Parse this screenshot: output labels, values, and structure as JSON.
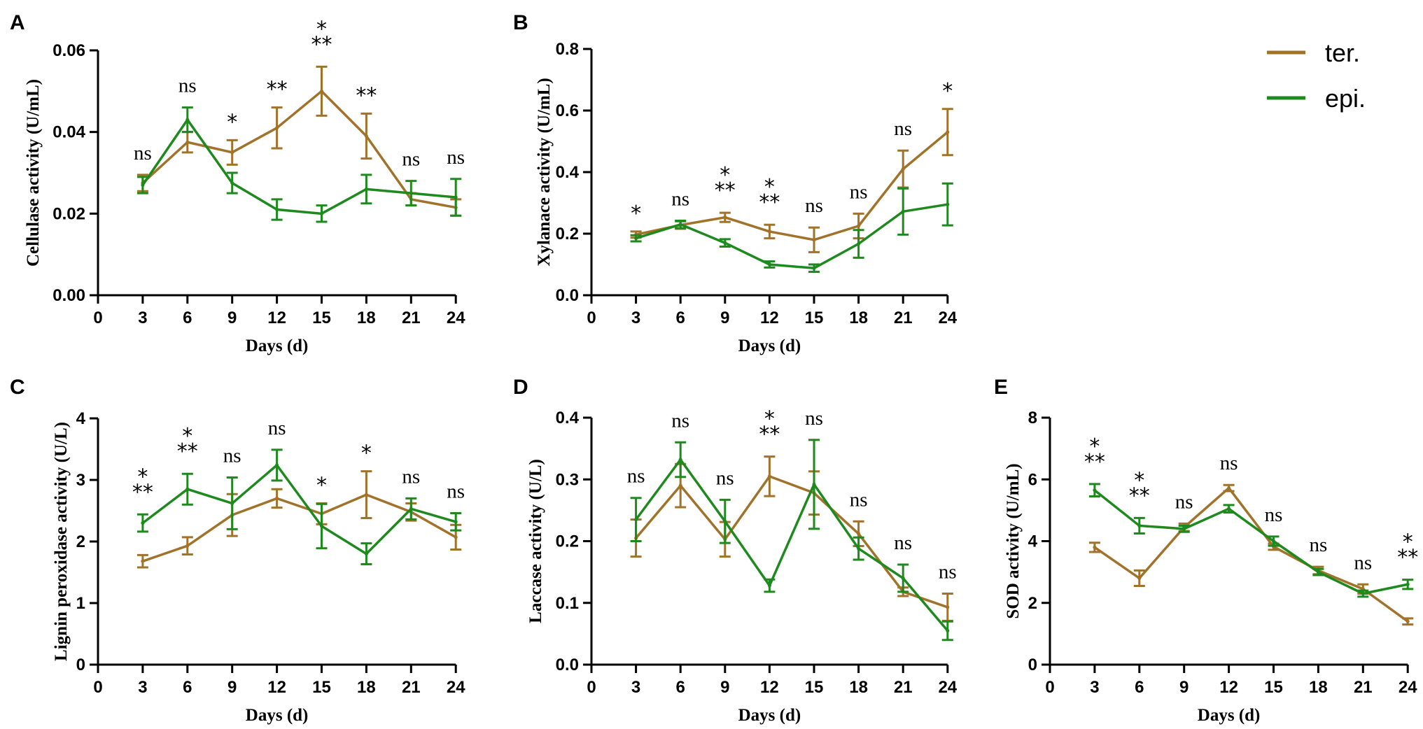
{
  "legend": [
    {
      "name": "ter.",
      "color": "#A0722A"
    },
    {
      "name": "epi.",
      "color": "#1E8A1E"
    }
  ],
  "chart_data": [
    {
      "type": "line",
      "panel": "A",
      "title": "",
      "xlabel": "Days (d)",
      "ylabel": "Cellulase activity (U/mL)",
      "xlim": [
        0,
        24
      ],
      "ylim": [
        0,
        0.06
      ],
      "xticks": [
        0,
        3,
        6,
        9,
        12,
        15,
        18,
        21,
        24
      ],
      "yticks": [
        0,
        0.02,
        0.04,
        0.06
      ],
      "ytick_labels": [
        "0.00",
        "0.02",
        "0.04",
        "0.06"
      ],
      "x": [
        3,
        6,
        9,
        12,
        15,
        18,
        21,
        24
      ],
      "series": [
        {
          "name": "ter.",
          "values": [
            0.0275,
            0.0375,
            0.035,
            0.041,
            0.05,
            0.039,
            0.0235,
            0.0215
          ],
          "errors": [
            0.002,
            0.0025,
            0.003,
            0.005,
            0.006,
            0.0055,
            0.0015,
            0.002
          ]
        },
        {
          "name": "epi.",
          "values": [
            0.027,
            0.043,
            0.0275,
            0.021,
            0.02,
            0.026,
            0.025,
            0.024
          ],
          "errors": [
            0.002,
            0.003,
            0.0025,
            0.0025,
            0.002,
            0.0035,
            0.003,
            0.0045
          ]
        }
      ],
      "annotations": [
        "ns",
        "ns",
        "*",
        "**",
        "***",
        "**",
        "ns",
        "ns"
      ]
    },
    {
      "type": "line",
      "panel": "B",
      "title": "",
      "xlabel": "Days (d)",
      "ylabel": "Xylanace activity (U/mL)",
      "xlim": [
        0,
        24
      ],
      "ylim": [
        0,
        0.8
      ],
      "xticks": [
        0,
        3,
        6,
        9,
        12,
        15,
        18,
        21,
        24
      ],
      "yticks": [
        0,
        0.2,
        0.4,
        0.6,
        0.8
      ],
      "ytick_labels": [
        "0.0",
        "0.2",
        "0.4",
        "0.6",
        "0.8"
      ],
      "x": [
        3,
        6,
        9,
        12,
        15,
        18,
        21,
        24
      ],
      "series": [
        {
          "name": "ter.",
          "values": [
            0.197,
            0.228,
            0.253,
            0.207,
            0.18,
            0.225,
            0.41,
            0.53
          ],
          "errors": [
            0.01,
            0.012,
            0.015,
            0.022,
            0.04,
            0.04,
            0.06,
            0.075
          ]
        },
        {
          "name": "epi.",
          "values": [
            0.185,
            0.23,
            0.17,
            0.1,
            0.088,
            0.167,
            0.272,
            0.295
          ],
          "errors": [
            0.01,
            0.012,
            0.012,
            0.01,
            0.012,
            0.045,
            0.075,
            0.068
          ]
        }
      ],
      "annotations": [
        "*",
        "ns",
        "***",
        "***",
        "ns",
        "ns",
        "ns",
        "*"
      ]
    },
    {
      "type": "line",
      "panel": "C",
      "title": "",
      "xlabel": "Days (d)",
      "ylabel": "Lignin peroxidase activity (U/L)",
      "xlim": [
        0,
        24
      ],
      "ylim": [
        0,
        4
      ],
      "xticks": [
        0,
        3,
        6,
        9,
        12,
        15,
        18,
        21,
        24
      ],
      "yticks": [
        0,
        1,
        2,
        3,
        4
      ],
      "ytick_labels": [
        "0",
        "1",
        "2",
        "3",
        "4"
      ],
      "x": [
        3,
        6,
        9,
        12,
        15,
        18,
        21,
        24
      ],
      "series": [
        {
          "name": "ter.",
          "values": [
            1.68,
            1.93,
            2.43,
            2.7,
            2.45,
            2.76,
            2.48,
            2.07
          ],
          "errors": [
            0.1,
            0.14,
            0.34,
            0.15,
            0.17,
            0.38,
            0.14,
            0.2
          ]
        },
        {
          "name": "epi.",
          "values": [
            2.3,
            2.85,
            2.62,
            3.24,
            2.25,
            1.8,
            2.53,
            2.32
          ],
          "errors": [
            0.14,
            0.25,
            0.42,
            0.25,
            0.36,
            0.17,
            0.17,
            0.14
          ]
        }
      ],
      "annotations": [
        "***",
        "***",
        "ns",
        "ns",
        "*",
        "*",
        "ns",
        "ns"
      ]
    },
    {
      "type": "line",
      "panel": "D",
      "title": "",
      "xlabel": "Days (d)",
      "ylabel": "Laccase activity (U/L)",
      "xlim": [
        0,
        24
      ],
      "ylim": [
        0,
        0.4
      ],
      "xticks": [
        0,
        3,
        6,
        9,
        12,
        15,
        18,
        21,
        24
      ],
      "yticks": [
        0,
        0.1,
        0.2,
        0.3,
        0.4
      ],
      "ytick_labels": [
        "0.0",
        "0.1",
        "0.2",
        "0.3",
        "0.4"
      ],
      "x": [
        3,
        6,
        9,
        12,
        15,
        18,
        21,
        24
      ],
      "series": [
        {
          "name": "ter.",
          "values": [
            0.205,
            0.29,
            0.203,
            0.305,
            0.278,
            0.212,
            0.118,
            0.093
          ],
          "errors": [
            0.03,
            0.035,
            0.028,
            0.032,
            0.035,
            0.02,
            0.007,
            0.022
          ]
        },
        {
          "name": "epi.",
          "values": [
            0.235,
            0.332,
            0.232,
            0.128,
            0.292,
            0.188,
            0.14,
            0.055
          ],
          "errors": [
            0.035,
            0.028,
            0.035,
            0.01,
            0.072,
            0.018,
            0.022,
            0.015
          ]
        }
      ],
      "annotations": [
        "ns",
        "ns",
        "ns",
        "***",
        "ns",
        "ns",
        "ns",
        "ns"
      ]
    },
    {
      "type": "line",
      "panel": "E",
      "title": "",
      "xlabel": "Days (d)",
      "ylabel": "SOD activity (U/mL)",
      "xlim": [
        0,
        24
      ],
      "ylim": [
        0,
        8
      ],
      "xticks": [
        0,
        3,
        6,
        9,
        12,
        15,
        18,
        21,
        24
      ],
      "yticks": [
        0,
        2,
        4,
        6,
        8
      ],
      "ytick_labels": [
        "0",
        "2",
        "4",
        "6",
        "8"
      ],
      "x": [
        3,
        6,
        9,
        12,
        15,
        18,
        21,
        24
      ],
      "series": [
        {
          "name": "ter.",
          "values": [
            3.8,
            2.8,
            4.45,
            5.72,
            3.82,
            3.05,
            2.45,
            1.4
          ],
          "errors": [
            0.15,
            0.25,
            0.12,
            0.1,
            0.1,
            0.12,
            0.15,
            0.1
          ]
        },
        {
          "name": "epi.",
          "values": [
            5.65,
            4.5,
            4.4,
            5.05,
            4.0,
            3.0,
            2.3,
            2.6
          ],
          "errors": [
            0.2,
            0.25,
            0.1,
            0.12,
            0.15,
            0.1,
            0.1,
            0.15
          ]
        }
      ],
      "annotations": [
        "***",
        "***",
        "ns",
        "ns",
        "ns",
        "ns",
        "ns",
        "***"
      ]
    }
  ]
}
